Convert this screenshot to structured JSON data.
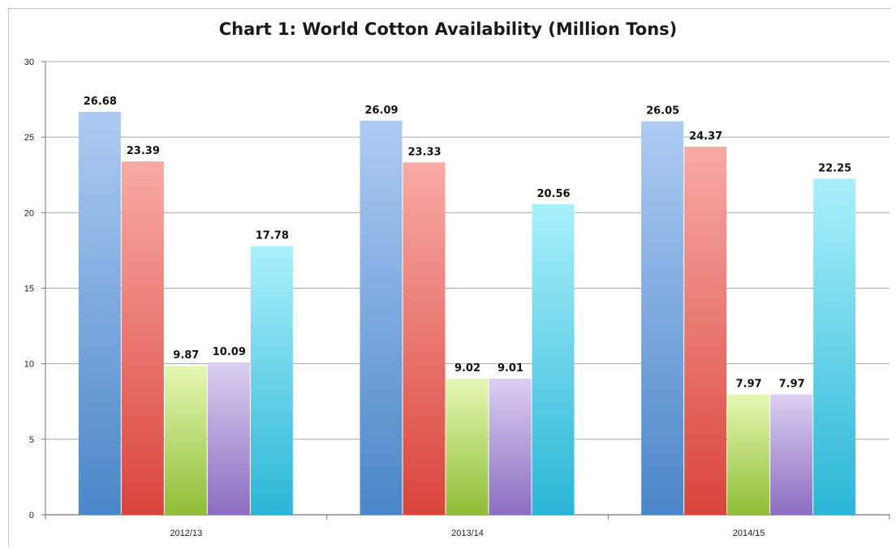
{
  "chart_data": {
    "type": "bar",
    "title": "Chart 1: World Cotton Availability (Million Tons)",
    "xlabel": "",
    "ylabel": "",
    "categories": [
      "2012/13",
      "2013/14",
      "2014/15"
    ],
    "series": [
      {
        "values": [
          26.68,
          26.09,
          26.05
        ],
        "color": "#5b9bd5",
        "color_light": "#aecbf3",
        "color_dark": "#4a86c8"
      },
      {
        "values": [
          23.39,
          23.33,
          24.37
        ],
        "color": "#e0524a",
        "color_light": "#f9aaa5",
        "color_dark": "#d9443c"
      },
      {
        "values": [
          9.87,
          9.02,
          7.97
        ],
        "color": "#9dc53e",
        "color_light": "#e6f8b3",
        "color_dark": "#8fbe37"
      },
      {
        "values": [
          10.09,
          9.01,
          7.97
        ],
        "color": "#9a7ec9",
        "color_light": "#dccff2",
        "color_dark": "#8b6ec0"
      },
      {
        "values": [
          17.78,
          20.56,
          22.25
        ],
        "color": "#33c2dd",
        "color_light": "#aaf0fb",
        "color_dark": "#2ab6d6"
      }
    ],
    "data_labels": [
      [
        "26.68",
        "26.09",
        "26.05"
      ],
      [
        "23.39",
        "23.33",
        "24.37"
      ],
      [
        "9.87",
        "9.02",
        "7.97"
      ],
      [
        "10.09",
        "9.01",
        "7.97"
      ],
      [
        "17.78",
        "20.56",
        "22.25"
      ]
    ],
    "ylim": [
      0,
      30
    ],
    "yticks": [
      "0",
      "5",
      "10",
      "15",
      "20",
      "25",
      "30"
    ],
    "grid": true,
    "legend": "none"
  }
}
